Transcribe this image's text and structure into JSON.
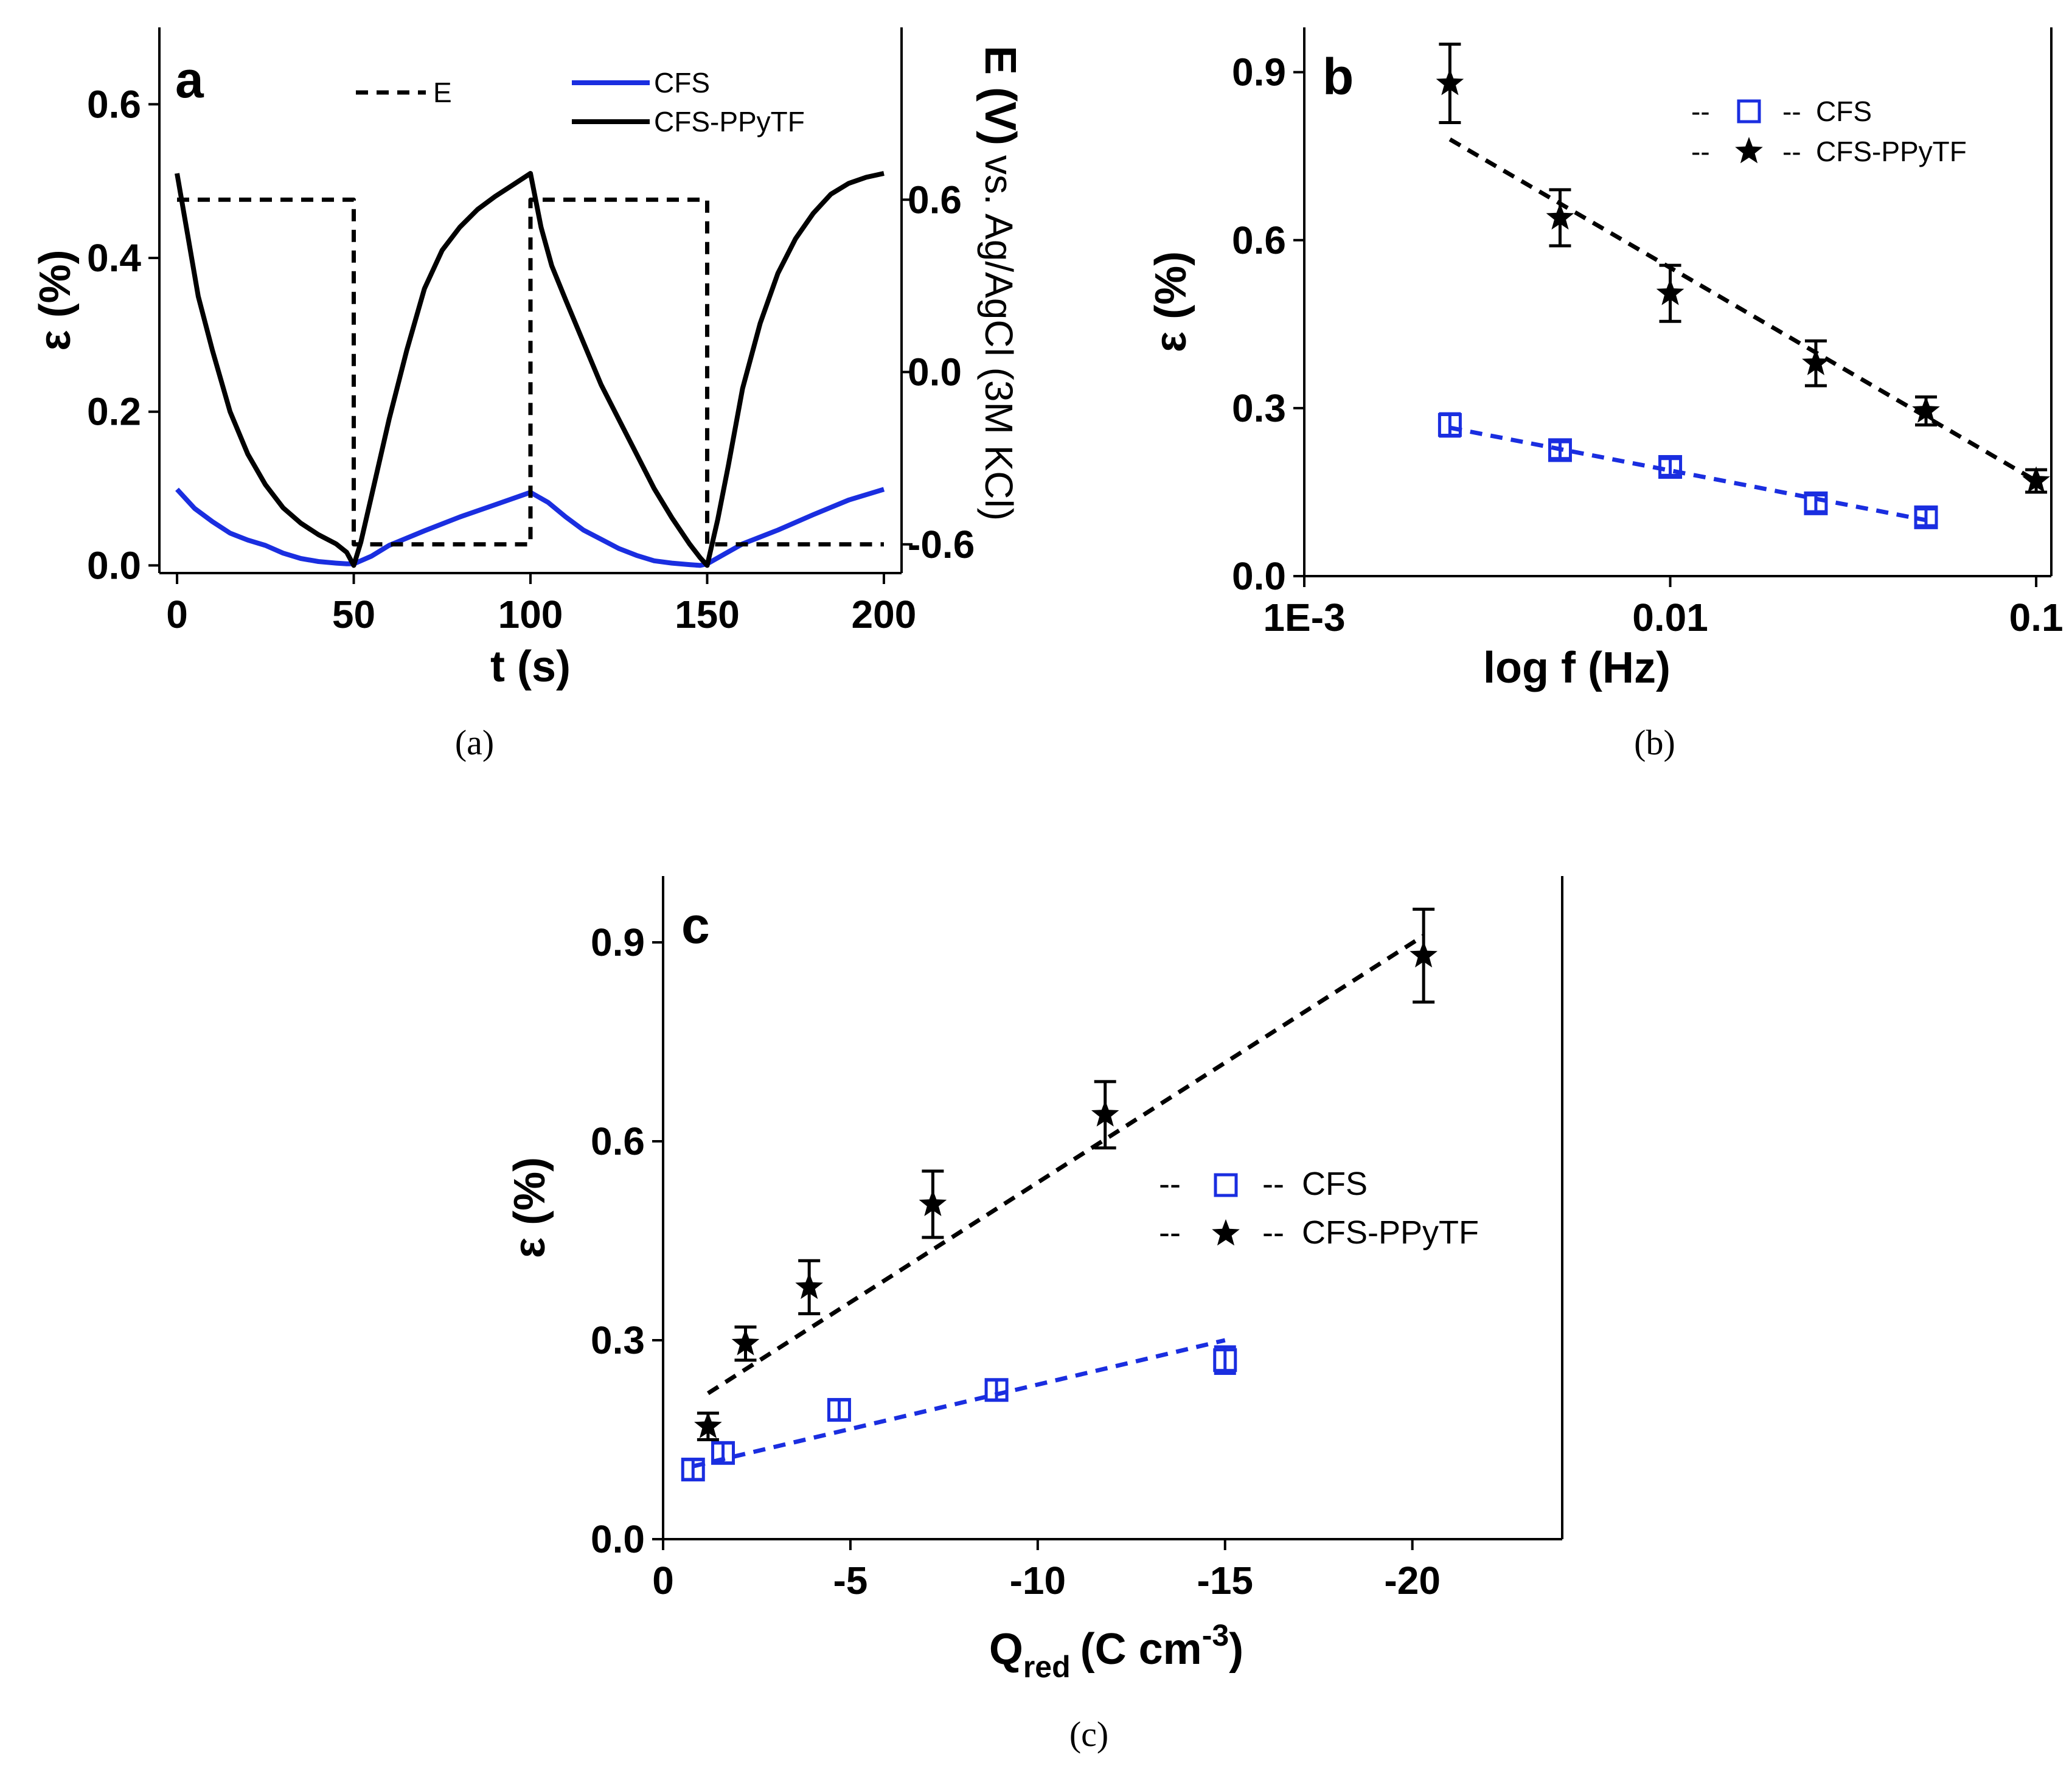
{
  "panel_titles": {
    "a": "a",
    "b": "b",
    "c": "c"
  },
  "chart_data": [
    {
      "id": "a",
      "type": "line",
      "caption": "(a)",
      "letter": "a",
      "xlabel": "t (s)",
      "ylabel": "ε (%)",
      "y2label": "E (V) vs. Ag/AgCl (3M KCl)",
      "y2label_bold": "E (V)",
      "y2label_rest": "vs. Ag/AgCl (3M KCl)",
      "xlim": [
        -5,
        205
      ],
      "ylim": [
        -0.01,
        0.7
      ],
      "y2lim": [
        -0.7,
        1.2
      ],
      "xticks": [
        0,
        50,
        100,
        150,
        200
      ],
      "yticks": [
        0.0,
        0.2,
        0.4,
        0.6
      ],
      "ytick_labels": [
        "0.0",
        "0.2",
        "0.4",
        "0.6"
      ],
      "y2ticks": [
        -0.6,
        0.0,
        0.6
      ],
      "y2tick_labels": [
        "-0.6",
        "0.0",
        "0.6"
      ],
      "legend": [
        "E",
        "CFS",
        "CFS-PPyTF"
      ],
      "series": [
        {
          "name": "CFS",
          "color": "#1a2ee0",
          "x": [
            0,
            5,
            10,
            15,
            20,
            25,
            30,
            35,
            40,
            45,
            48,
            50,
            55,
            60,
            70,
            80,
            90,
            100,
            105,
            110,
            115,
            120,
            125,
            130,
            135,
            140,
            145,
            148,
            150,
            155,
            160,
            170,
            180,
            190,
            200
          ],
          "y": [
            0.099,
            0.074,
            0.057,
            0.042,
            0.033,
            0.026,
            0.016,
            0.009,
            0.005,
            0.003,
            0.002,
            0.002,
            0.012,
            0.026,
            0.045,
            0.063,
            0.079,
            0.095,
            0.082,
            0.063,
            0.046,
            0.034,
            0.022,
            0.013,
            0.006,
            0.003,
            0.001,
            0.0,
            0.002,
            0.015,
            0.028,
            0.046,
            0.066,
            0.085,
            0.099
          ]
        },
        {
          "name": "CFS-PPyTF",
          "color": "#000000",
          "x": [
            0,
            3,
            6,
            10,
            15,
            20,
            25,
            30,
            35,
            40,
            45,
            48,
            50,
            52,
            55,
            60,
            65,
            70,
            75,
            80,
            85,
            90,
            95,
            100,
            103,
            106,
            110,
            115,
            120,
            125,
            130,
            135,
            140,
            145,
            148,
            150,
            153,
            156,
            160,
            165,
            170,
            175,
            180,
            185,
            190,
            195,
            200
          ],
          "y": [
            0.51,
            0.43,
            0.35,
            0.28,
            0.2,
            0.145,
            0.105,
            0.075,
            0.055,
            0.04,
            0.028,
            0.017,
            0.0,
            0.03,
            0.09,
            0.19,
            0.28,
            0.36,
            0.41,
            0.44,
            0.463,
            0.48,
            0.495,
            0.51,
            0.44,
            0.39,
            0.345,
            0.29,
            0.235,
            0.19,
            0.145,
            0.1,
            0.062,
            0.028,
            0.01,
            0.0,
            0.06,
            0.13,
            0.23,
            0.315,
            0.38,
            0.425,
            0.458,
            0.483,
            0.497,
            0.505,
            0.51
          ]
        },
        {
          "name": "E",
          "color": "#000000",
          "axis": "y2",
          "dash": true,
          "x": [
            0,
            50,
            50,
            100,
            100,
            150,
            150,
            200
          ],
          "y": [
            0.6,
            0.6,
            -0.6,
            -0.6,
            0.6,
            0.6,
            -0.6,
            -0.6
          ]
        }
      ]
    },
    {
      "id": "b",
      "type": "scatter",
      "caption": "(b)",
      "letter": "b",
      "xlabel": "log f (Hz)",
      "ylabel": "ε (%)",
      "xscale": "log",
      "xlim": [
        0.001,
        0.11
      ],
      "ylim": [
        0.0,
        0.98
      ],
      "xticks": [
        0.001,
        0.01,
        0.1
      ],
      "xtick_labels": [
        "1E-3",
        "0.01",
        "0.1"
      ],
      "yticks": [
        0.0,
        0.3,
        0.6,
        0.9
      ],
      "ytick_labels": [
        "0.0",
        "0.3",
        "0.6",
        "0.9"
      ],
      "legend": [
        "CFS",
        "CFS-PPyTF"
      ],
      "legend_prefix": "--",
      "series": [
        {
          "name": "CFS",
          "color": "#1a2ee0",
          "marker": "square",
          "x": [
            0.0025,
            0.005,
            0.01,
            0.025,
            0.05
          ],
          "y": [
            0.27,
            0.225,
            0.195,
            0.13,
            0.105
          ],
          "err": [
            0.02,
            0.015,
            0.015,
            0.015,
            0.015
          ],
          "fit": {
            "x": [
              0.0025,
              0.05
            ],
            "y": [
              0.265,
              0.1
            ]
          }
        },
        {
          "name": "CFS-PPyTF",
          "color": "#000000",
          "marker": "star",
          "x": [
            0.0025,
            0.005,
            0.01,
            0.025,
            0.05,
            0.1
          ],
          "y": [
            0.88,
            0.64,
            0.505,
            0.38,
            0.295,
            0.17
          ],
          "err": [
            0.07,
            0.05,
            0.05,
            0.04,
            0.025,
            0.02
          ],
          "fit": {
            "x": [
              0.0025,
              0.1
            ],
            "y": [
              0.78,
              0.17
            ]
          }
        }
      ]
    },
    {
      "id": "c",
      "type": "scatter",
      "caption": "(c)",
      "letter": "c",
      "xlabel": "Q",
      "xlabel_sub": "red",
      "xlabel_rest": "(C cm",
      "xlabel_sup": "-3",
      "xlabel_end": ")",
      "ylabel": "ε (%)",
      "xlim": [
        0,
        -24
      ],
      "ylim": [
        0.0,
        1.0
      ],
      "xticks": [
        0,
        -5,
        -10,
        -15,
        -20
      ],
      "xtick_labels": [
        "0",
        "-5",
        "-10",
        "-15",
        "-20"
      ],
      "yticks": [
        0.0,
        0.3,
        0.6,
        0.9
      ],
      "ytick_labels": [
        "0.0",
        "0.3",
        "0.6",
        "0.9"
      ],
      "legend": [
        "CFS",
        "CFS-PPyTF"
      ],
      "legend_prefix": "--",
      "series": [
        {
          "name": "CFS",
          "color": "#1a2ee0",
          "marker": "square",
          "x": [
            -0.8,
            -1.6,
            -4.7,
            -8.9,
            -15.0
          ],
          "y": [
            0.105,
            0.13,
            0.195,
            0.225,
            0.27
          ],
          "err": [
            0.015,
            0.015,
            0.015,
            0.015,
            0.02
          ],
          "fit": {
            "x": [
              -0.8,
              -15.0
            ],
            "y": [
              0.11,
              0.3
            ]
          }
        },
        {
          "name": "CFS-PPyTF",
          "color": "#000000",
          "marker": "star",
          "x": [
            -1.2,
            -2.2,
            -3.9,
            -7.2,
            -11.8,
            -20.3
          ],
          "y": [
            0.17,
            0.295,
            0.38,
            0.505,
            0.64,
            0.88
          ],
          "err": [
            0.02,
            0.025,
            0.04,
            0.05,
            0.05,
            0.07
          ],
          "fit": {
            "x": [
              -1.2,
              -20.3
            ],
            "y": [
              0.22,
              0.91
            ]
          }
        }
      ]
    }
  ]
}
